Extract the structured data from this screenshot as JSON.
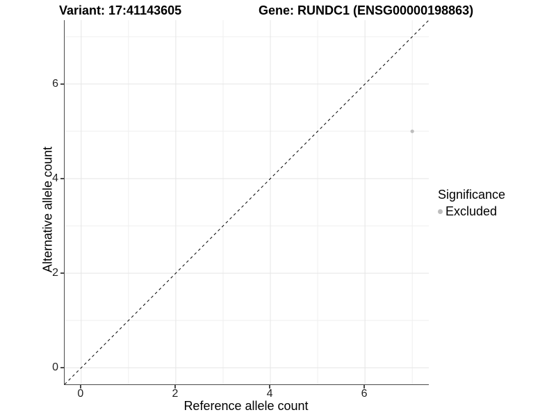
{
  "figure": {
    "title_left": "Variant: 17:41143605",
    "title_right": "Gene: RUNDC1 (ENSG00000198863)"
  },
  "axes": {
    "x_label": "Reference allele count",
    "y_label": "Alternative allele count"
  },
  "legend": {
    "title": "Significance",
    "entries": [
      {
        "label": "Excluded",
        "color": "#bdbdbd"
      }
    ]
  },
  "colors": {
    "axis_line": "#4a4a4a",
    "grid_major": "#e5e5e5",
    "grid_minor": "#efefef",
    "reference_line": "#000000",
    "point": "#bdbdbd",
    "background": "#ffffff"
  },
  "chart_data": {
    "type": "scatter",
    "title": "Variant: 17:41143605    Gene: RUNDC1 (ENSG00000198863)",
    "xlabel": "Reference allele count",
    "ylabel": "Alternative allele count",
    "xlim": [
      -0.35,
      7.35
    ],
    "ylim": [
      -0.35,
      7.35
    ],
    "x_ticks": [
      0,
      2,
      4,
      6
    ],
    "y_ticks": [
      0,
      2,
      4,
      6
    ],
    "x_minor_ticks": [
      1,
      3,
      5,
      7
    ],
    "y_minor_ticks": [
      1,
      3,
      5,
      7
    ],
    "grid": true,
    "reference_line": {
      "kind": "identity-diagonal",
      "style": "dashed",
      "color": "#000000"
    },
    "series": [
      {
        "name": "Excluded",
        "color": "#bdbdbd",
        "points": [
          {
            "x": 7,
            "y": 5
          }
        ]
      }
    ],
    "legend_title": "Significance",
    "legend_position": "right"
  }
}
